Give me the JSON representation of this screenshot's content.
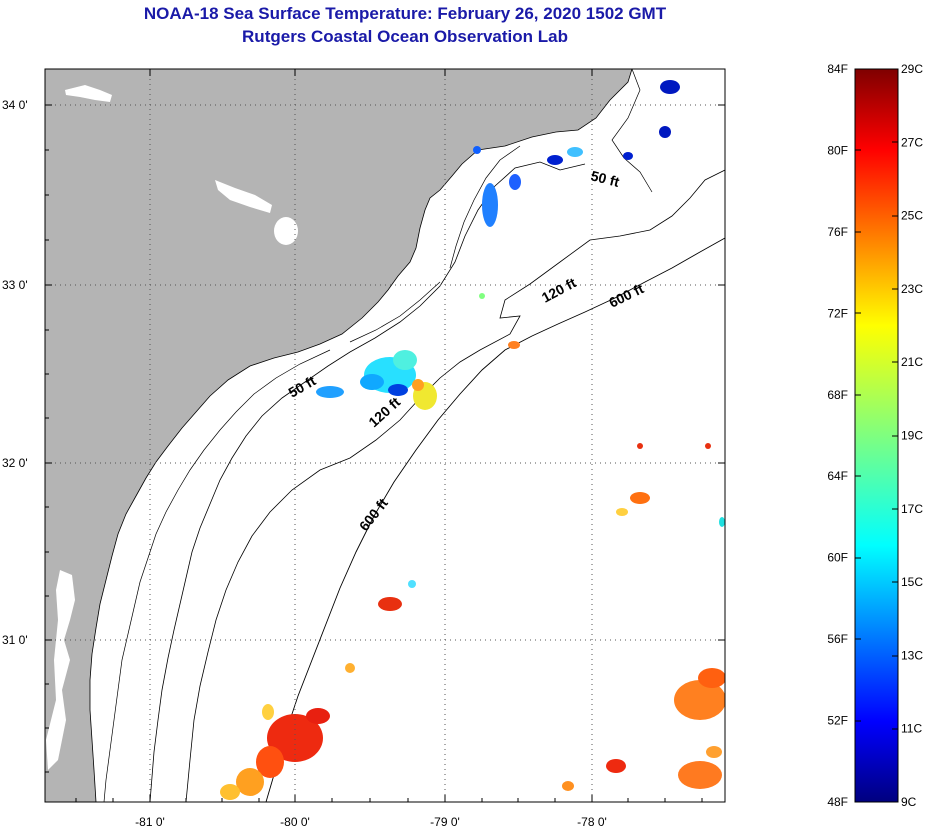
{
  "title": "NOAA-18 Sea Surface Temperature:  February 26, 2020 1502 GMT",
  "subtitle": "Rutgers Coastal Ocean Observation Lab",
  "map": {
    "lon_range": [
      -81.7,
      -77.2
    ],
    "lat_range": [
      30.2,
      34.2
    ],
    "lat_labels": [
      "34 0'",
      "33 0'",
      "32 0'",
      "31 0'"
    ],
    "lon_labels": [
      "-81 0'",
      "-80 0'",
      "-79 0'",
      "-78 0'"
    ],
    "contours": [
      {
        "label": "50 ft",
        "lon": -78.0,
        "lat": 33.62
      },
      {
        "label": "120 ft",
        "lon": -78.2,
        "lat": 32.95
      },
      {
        "label": "600 ft",
        "lon": -77.75,
        "lat": 32.93
      },
      {
        "label": "50 ft",
        "lon": -79.9,
        "lat": 32.46
      },
      {
        "label": "120 ft",
        "lon": -79.3,
        "lat": 32.27
      },
      {
        "label": "600 ft",
        "lon": -79.45,
        "lat": 31.7
      }
    ],
    "colors": {
      "land": "#b4b4b4",
      "water": "#ffffff",
      "grid": "#555555"
    }
  },
  "colorbar": {
    "f_labels": [
      "84F",
      "80F",
      "76F",
      "72F",
      "68F",
      "64F",
      "60F",
      "56F",
      "52F",
      "48F"
    ],
    "c_labels": [
      "29C",
      "27C",
      "25C",
      "23C",
      "21C",
      "19C",
      "17C",
      "15C",
      "13C",
      "11C",
      "9C"
    ],
    "colormap": "jet",
    "range_c": [
      9,
      29
    ]
  }
}
